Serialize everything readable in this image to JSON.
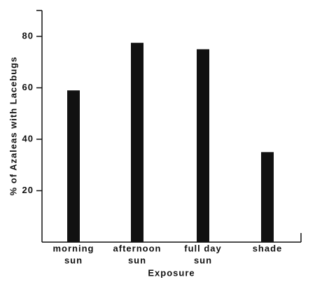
{
  "chart_data": {
    "type": "bar",
    "categories": [
      [
        "morning",
        "sun"
      ],
      [
        "afternoon",
        "sun"
      ],
      [
        "full day",
        "sun"
      ],
      [
        "shade"
      ]
    ],
    "values": [
      59,
      77.5,
      75,
      35
    ],
    "color": "#111111",
    "xlabel": "Exposure",
    "ylabel": "% of Azaleas with Lacebugs",
    "ylim": [
      0,
      90
    ],
    "yticks": [
      20,
      40,
      60,
      80
    ],
    "grid": false
  }
}
